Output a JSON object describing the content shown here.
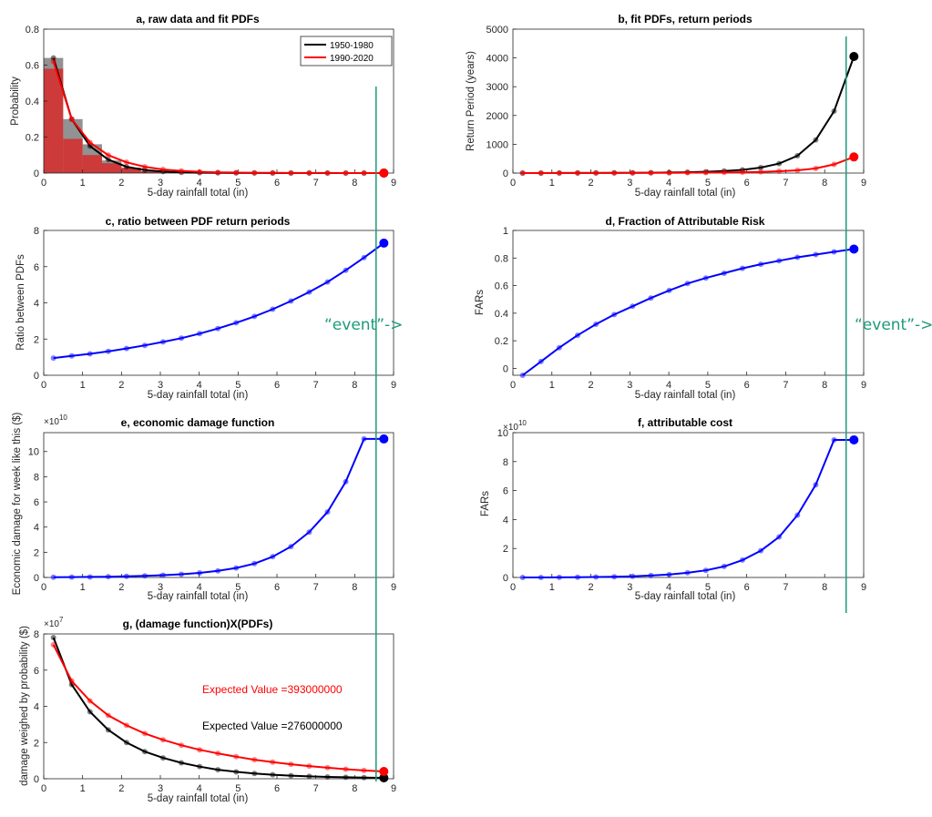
{
  "figure": {
    "event_label": "“event”->",
    "event_x": 8.55
  },
  "chart_data": [
    {
      "id": "a",
      "type": "line",
      "title": "a, raw data and fit PDFs",
      "xlabel": "5-day rainfall total (in)",
      "ylabel": "Probability",
      "xlim": [
        0,
        9
      ],
      "ylim": [
        0,
        0.8
      ],
      "xticks": [
        "0",
        "1",
        "2",
        "3",
        "4",
        "5",
        "6",
        "7",
        "8",
        "9"
      ],
      "yticks": [
        "0",
        "0.2",
        "0.4",
        "0.6",
        "0.8"
      ],
      "legend": {
        "position": "top-right",
        "entries": [
          "1950-1980",
          "1990-2020"
        ]
      },
      "histogram": [
        {
          "name": "1950-1980",
          "color": "#7f7f7f",
          "x0": [
            0,
            0.5,
            1,
            1.5,
            2,
            2.5
          ],
          "width": 0.5,
          "values": [
            0.64,
            0.3,
            0.16,
            0.07,
            0.025,
            0.01
          ]
        },
        {
          "name": "1990-2020",
          "color": "#d62a2a",
          "x0": [
            0,
            0.5,
            1,
            1.5,
            2,
            2.5
          ],
          "width": 0.5,
          "values": [
            0.58,
            0.19,
            0.1,
            0.055,
            0.03,
            0.01
          ]
        }
      ],
      "x": [
        0.25,
        0.72,
        1.19,
        1.66,
        2.13,
        2.6,
        3.07,
        3.54,
        4.01,
        4.48,
        4.95,
        5.42,
        5.89,
        6.36,
        6.83,
        7.3,
        7.77,
        8.24,
        8.75
      ],
      "series": [
        {
          "name": "1950-1980",
          "color": "#000000",
          "values": [
            0.64,
            0.3,
            0.15,
            0.075,
            0.035,
            0.017,
            0.008,
            0.004,
            0.002,
            0.001,
            0.0005,
            0.0003,
            0.0002,
            0.0001,
            0.0001,
            0,
            0,
            0,
            0
          ]
        },
        {
          "name": "1990-2020",
          "color": "#ff0000",
          "values": [
            0.62,
            0.3,
            0.17,
            0.1,
            0.06,
            0.035,
            0.02,
            0.012,
            0.007,
            0.004,
            0.0025,
            0.0015,
            0.001,
            0.0006,
            0.0004,
            0.0003,
            0.0002,
            0.0001,
            0.0001
          ]
        }
      ]
    },
    {
      "id": "b",
      "type": "line",
      "title": "b, fit PDFs, return periods",
      "xlabel": "5-day rainfall total (in)",
      "ylabel": "Return Period (years)",
      "xlim": [
        0,
        9
      ],
      "ylim": [
        0,
        5000
      ],
      "xticks": [
        "0",
        "1",
        "2",
        "3",
        "4",
        "5",
        "6",
        "7",
        "8",
        "9"
      ],
      "yticks": [
        "0",
        "1000",
        "2000",
        "3000",
        "4000",
        "5000"
      ],
      "x": [
        0.25,
        0.72,
        1.19,
        1.66,
        2.13,
        2.6,
        3.07,
        3.54,
        4.01,
        4.48,
        4.95,
        5.42,
        5.89,
        6.36,
        6.83,
        7.3,
        7.77,
        8.24,
        8.75
      ],
      "series": [
        {
          "name": "1950-1980",
          "color": "#000000",
          "values": [
            1,
            1,
            2,
            3,
            4,
            6,
            9,
            13,
            20,
            30,
            45,
            70,
            110,
            190,
            330,
            600,
            1150,
            2150,
            4050
          ]
        },
        {
          "name": "1990-2020",
          "color": "#ff0000",
          "values": [
            1,
            1,
            1,
            2,
            3,
            4,
            5,
            7,
            9,
            12,
            16,
            22,
            30,
            42,
            62,
            95,
            160,
            300,
            560
          ]
        }
      ]
    },
    {
      "id": "c",
      "type": "line",
      "title": "c, ratio between PDF return periods",
      "xlabel": "5-day rainfall total (in)",
      "ylabel": "Ratio between PDFs",
      "xlim": [
        0,
        9
      ],
      "ylim": [
        0,
        8
      ],
      "xticks": [
        "0",
        "1",
        "2",
        "3",
        "4",
        "5",
        "6",
        "7",
        "8",
        "9"
      ],
      "yticks": [
        "0",
        "2",
        "4",
        "6",
        "8"
      ],
      "x": [
        0.25,
        0.72,
        1.19,
        1.66,
        2.13,
        2.6,
        3.07,
        3.54,
        4.01,
        4.48,
        4.95,
        5.42,
        5.89,
        6.36,
        6.83,
        7.3,
        7.77,
        8.24,
        8.75
      ],
      "series": [
        {
          "name": "ratio",
          "color": "#0000ff",
          "values": [
            0.95,
            1.07,
            1.18,
            1.32,
            1.48,
            1.65,
            1.84,
            2.05,
            2.3,
            2.58,
            2.9,
            3.25,
            3.65,
            4.1,
            4.6,
            5.15,
            5.8,
            6.5,
            7.3
          ]
        }
      ]
    },
    {
      "id": "d",
      "type": "line",
      "title": "d, Fraction of Attributable Risk",
      "xlabel": "5-day rainfall total (in)",
      "ylabel": "FARs",
      "xlim": [
        0,
        9
      ],
      "ylim": [
        -0.05,
        1
      ],
      "xticks": [
        "0",
        "1",
        "2",
        "3",
        "4",
        "5",
        "6",
        "7",
        "8",
        "9"
      ],
      "yticks": [
        "0",
        "0.2",
        "0.4",
        "0.6",
        "0.8",
        "1"
      ],
      "x": [
        0.25,
        0.72,
        1.19,
        1.66,
        2.13,
        2.6,
        3.07,
        3.54,
        4.01,
        4.48,
        4.95,
        5.42,
        5.89,
        6.36,
        6.83,
        7.3,
        7.77,
        8.24,
        8.75
      ],
      "series": [
        {
          "name": "FAR",
          "color": "#0000ff",
          "values": [
            -0.05,
            0.05,
            0.15,
            0.24,
            0.32,
            0.39,
            0.45,
            0.51,
            0.565,
            0.615,
            0.655,
            0.69,
            0.725,
            0.755,
            0.78,
            0.805,
            0.825,
            0.845,
            0.865
          ]
        }
      ]
    },
    {
      "id": "e",
      "type": "line",
      "title": "e, economic damage function",
      "xlabel": "5-day rainfall total (in)",
      "ylabel": "Economic damage for week like this ($)",
      "multiplier": "×10",
      "multiplier_exp": "10",
      "xlim": [
        0,
        9
      ],
      "ylim": [
        0,
        11.5
      ],
      "xticks": [
        "0",
        "1",
        "2",
        "3",
        "4",
        "5",
        "6",
        "7",
        "8",
        "9"
      ],
      "yticks": [
        "0",
        "2",
        "4",
        "6",
        "8",
        "10"
      ],
      "x": [
        0.25,
        0.72,
        1.19,
        1.66,
        2.13,
        2.6,
        3.07,
        3.54,
        4.01,
        4.48,
        4.95,
        5.42,
        5.89,
        6.36,
        6.83,
        7.3,
        7.77,
        8.24,
        8.75
      ],
      "series": [
        {
          "name": "damage",
          "color": "#0000ff",
          "values": [
            0.02,
            0.03,
            0.04,
            0.06,
            0.09,
            0.13,
            0.18,
            0.25,
            0.36,
            0.52,
            0.75,
            1.1,
            1.65,
            2.45,
            3.6,
            5.2,
            7.6,
            11.0,
            11.0
          ]
        }
      ]
    },
    {
      "id": "f",
      "type": "line",
      "title": "f, attributable cost",
      "xlabel": "5-day rainfall total (in)",
      "ylabel": "FARs",
      "multiplier": "×10",
      "multiplier_exp": "10",
      "xlim": [
        0,
        9
      ],
      "ylim": [
        0,
        10
      ],
      "xticks": [
        "0",
        "1",
        "2",
        "3",
        "4",
        "5",
        "6",
        "7",
        "8",
        "9"
      ],
      "yticks": [
        "0",
        "2",
        "4",
        "6",
        "8",
        "10"
      ],
      "x": [
        0.25,
        0.72,
        1.19,
        1.66,
        2.13,
        2.6,
        3.07,
        3.54,
        4.01,
        4.48,
        4.95,
        5.42,
        5.89,
        6.36,
        6.83,
        7.3,
        7.77,
        8.24,
        8.75
      ],
      "series": [
        {
          "name": "attributable cost",
          "color": "#0000ff",
          "values": [
            0,
            0.002,
            0.006,
            0.015,
            0.03,
            0.05,
            0.08,
            0.13,
            0.2,
            0.32,
            0.49,
            0.76,
            1.2,
            1.85,
            2.8,
            4.3,
            6.4,
            9.5,
            9.5
          ]
        }
      ]
    },
    {
      "id": "g",
      "type": "line",
      "title": "g, (damage function)X(PDFs)",
      "xlabel": "5-day rainfall total (in)",
      "ylabel": "damage weighed by probability ($)",
      "multiplier": "×10",
      "multiplier_exp": "7",
      "xlim": [
        0,
        9
      ],
      "ylim": [
        0,
        8
      ],
      "xticks": [
        "0",
        "1",
        "2",
        "3",
        "4",
        "5",
        "6",
        "7",
        "8",
        "9"
      ],
      "yticks": [
        "0",
        "2",
        "4",
        "6",
        "8"
      ],
      "annotations": [
        {
          "text": "Expected Value =393000000",
          "color": "#ff0000"
        },
        {
          "text": "Expected Value =276000000",
          "color": "#000000"
        }
      ],
      "x": [
        0.25,
        0.72,
        1.19,
        1.66,
        2.13,
        2.6,
        3.07,
        3.54,
        4.01,
        4.48,
        4.95,
        5.42,
        5.89,
        6.36,
        6.83,
        7.3,
        7.77,
        8.24,
        8.75
      ],
      "series": [
        {
          "name": "1950-1980",
          "color": "#000000",
          "values": [
            7.8,
            5.2,
            3.7,
            2.7,
            2.0,
            1.5,
            1.15,
            0.88,
            0.67,
            0.5,
            0.38,
            0.29,
            0.22,
            0.17,
            0.13,
            0.1,
            0.08,
            0.06,
            0.05
          ]
        },
        {
          "name": "1990-2020",
          "color": "#ff0000",
          "values": [
            7.4,
            5.4,
            4.3,
            3.5,
            2.95,
            2.5,
            2.15,
            1.85,
            1.6,
            1.4,
            1.22,
            1.05,
            0.92,
            0.8,
            0.7,
            0.61,
            0.53,
            0.46,
            0.4
          ]
        }
      ]
    }
  ]
}
